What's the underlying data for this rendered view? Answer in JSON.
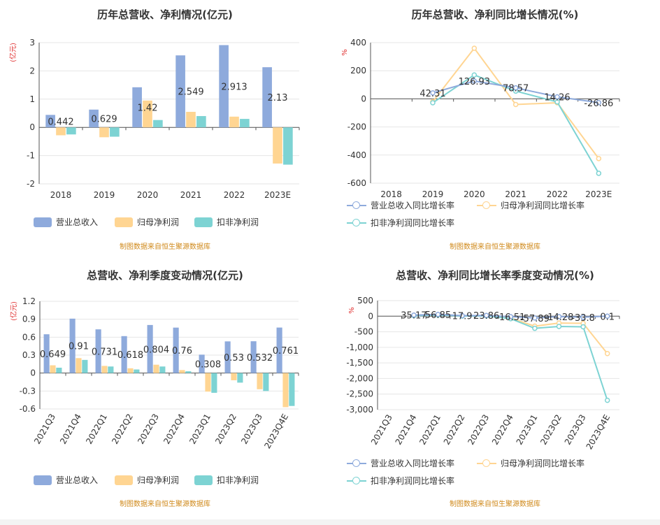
{
  "colors": {
    "revenue": "#8eaadc",
    "parent_profit": "#ffd592",
    "deducted_profit": "#7dd3d3",
    "axis_text": "#333333",
    "unit_text": "#e03030",
    "grid": "#e6e6e6",
    "source_text": "#d08a1c"
  },
  "chart_data": [
    {
      "id": "annual",
      "type": "bar",
      "title": "历年总营收、净利情况(亿元)",
      "ylabel": "(亿元)",
      "ylim": [
        -2,
        3
      ],
      "yticks": [
        "3",
        "2",
        "1",
        "0",
        "-1",
        "-2"
      ],
      "categories": [
        "2018",
        "2019",
        "2020",
        "2021",
        "2022",
        "2023E"
      ],
      "series": [
        {
          "name": "营业总收入",
          "values": [
            0.442,
            0.629,
            1.42,
            2.549,
            2.913,
            2.13
          ]
        },
        {
          "name": "归母净利润",
          "values": [
            -0.28,
            -0.35,
            0.95,
            0.55,
            0.38,
            -1.28
          ]
        },
        {
          "name": "扣非净利润",
          "values": [
            -0.25,
            -0.33,
            0.26,
            0.4,
            0.3,
            -1.32
          ]
        }
      ],
      "data_labels": [
        "0.442",
        "0.629",
        "1.42",
        "2.549",
        "2.913",
        "2.13"
      ],
      "source": "制图数据来自恒生聚源数据库"
    },
    {
      "id": "annual_growth",
      "type": "line",
      "title": "历年总营收、净利同比增长情况(%)",
      "ylabel": "%",
      "ylim": [
        -600,
        400
      ],
      "yticks": [
        "400",
        "200",
        "0",
        "-200",
        "-400",
        "-600"
      ],
      "categories": [
        "2018",
        "2019",
        "2020",
        "2021",
        "2022",
        "2023E"
      ],
      "series": [
        {
          "name": "营业总收入同比增长率",
          "values": [
            null,
            42.31,
            126.93,
            78.57,
            14.26,
            -26.86
          ]
        },
        {
          "name": "归母净利润同比增长率",
          "values": [
            null,
            -20,
            360,
            -40,
            -28,
            -425
          ]
        },
        {
          "name": "扣非净利润同比增长率",
          "values": [
            null,
            -28,
            170,
            55,
            -22,
            -530
          ]
        }
      ],
      "data_labels": [
        "",
        "42.31",
        "126.93",
        "78.57",
        "14.26",
        "-26.86"
      ],
      "source": "制图数据来自恒生聚源数据库"
    },
    {
      "id": "quarterly",
      "type": "bar",
      "title": "总营收、净利季度变动情况(亿元)",
      "ylabel": "(亿元)",
      "ylim": [
        -0.6,
        1.2
      ],
      "yticks": [
        "1.2",
        "0.9",
        "0.6",
        "0.3",
        "0",
        "-0.3",
        "-0.6"
      ],
      "categories": [
        "2021Q3",
        "2021Q4",
        "2022Q1",
        "2022Q2",
        "2022Q3",
        "2022Q4",
        "2023Q1",
        "2023Q2",
        "2023Q3",
        "2023Q4E"
      ],
      "series": [
        {
          "name": "营业总收入",
          "values": [
            0.649,
            0.91,
            0.731,
            0.618,
            0.804,
            0.76,
            0.308,
            0.53,
            0.532,
            0.761
          ]
        },
        {
          "name": "归母净利润",
          "values": [
            0.13,
            0.25,
            0.12,
            0.08,
            0.14,
            0.05,
            -0.31,
            -0.12,
            -0.27,
            -0.57
          ]
        },
        {
          "name": "扣非净利润",
          "values": [
            0.09,
            0.22,
            0.11,
            0.06,
            0.11,
            0.03,
            -0.33,
            -0.16,
            -0.3,
            -0.55
          ]
        }
      ],
      "data_labels": [
        "0.649",
        "0.91",
        "0.731",
        "0.618",
        "0.804",
        "0.76",
        "0.308",
        "0.53",
        "0.532",
        "0.761"
      ],
      "source": "制图数据来自恒生聚源数据库"
    },
    {
      "id": "quarterly_growth",
      "type": "line",
      "title": "总营收、净利同比增长率季度变动情况(%)",
      "ylabel": "%",
      "ylim": [
        -3000,
        500
      ],
      "yticks": [
        "500",
        "0",
        "-500",
        "-1,000",
        "-1,500",
        "-2,000",
        "-2,500",
        "-3,000"
      ],
      "categories": [
        "2021Q3",
        "2021Q4",
        "2022Q1",
        "2022Q2",
        "2022Q3",
        "2022Q4",
        "2023Q1",
        "2023Q2",
        "2023Q3",
        "2023Q4E"
      ],
      "series": [
        {
          "name": "营业总收入同比增长率",
          "values": [
            null,
            35.17,
            56.85,
            17.9,
            23.86,
            -16.51,
            -57.89,
            -14.28,
            -33.8,
            0.1
          ]
        },
        {
          "name": "归母净利润同比增长率",
          "values": [
            null,
            20,
            40,
            10,
            15,
            -60,
            -320,
            -220,
            -230,
            -1200
          ]
        },
        {
          "name": "扣非净利润同比增长率",
          "values": [
            null,
            15,
            35,
            5,
            10,
            -80,
            -390,
            -330,
            -340,
            -2700
          ]
        }
      ],
      "data_labels": [
        "",
        "35.17",
        "56.85",
        "17.9",
        "23.86",
        "-16.51",
        "-57.89",
        "-14.28",
        "-33.8",
        "0.1"
      ],
      "source": "制图数据来自恒生聚源数据库"
    }
  ]
}
